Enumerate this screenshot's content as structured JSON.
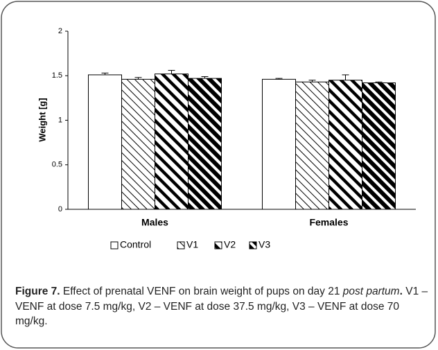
{
  "chart_data": {
    "type": "bar",
    "ylabel": "Weight [g]",
    "categories": [
      "Males",
      "Females"
    ],
    "series": [
      {
        "name": "Control",
        "color": "#000000",
        "hatch": "none",
        "values": [
          1.51,
          1.46
        ],
        "errors": [
          0.02,
          0.01
        ]
      },
      {
        "name": "V1",
        "color": "#000000",
        "hatch": "thin",
        "values": [
          1.46,
          1.43
        ],
        "errors": [
          0.02,
          0.02
        ]
      },
      {
        "name": "V2",
        "color": "#000000",
        "hatch": "medium",
        "values": [
          1.52,
          1.45
        ],
        "errors": [
          0.04,
          0.06
        ]
      },
      {
        "name": "V3",
        "color": "#000000",
        "hatch": "thick",
        "values": [
          1.47,
          1.42
        ],
        "errors": [
          0.02,
          0.01
        ]
      }
    ],
    "ylim": [
      0,
      2
    ],
    "yticks": [
      0,
      0.5,
      1,
      1.5,
      2
    ],
    "grid": false,
    "legend": "bottom"
  },
  "caption": {
    "label": "Figure 7.",
    "text_1": " Effect of prenatal VENF on brain weight of pups on day 21 ",
    "italic": "post partum",
    "period": ".",
    "text_2": " V1 – VENF at dose 7.5 mg/kg, V2 – VENF at dose 37.5 mg/kg, V3 – VENF at dose 70 mg/kg."
  }
}
